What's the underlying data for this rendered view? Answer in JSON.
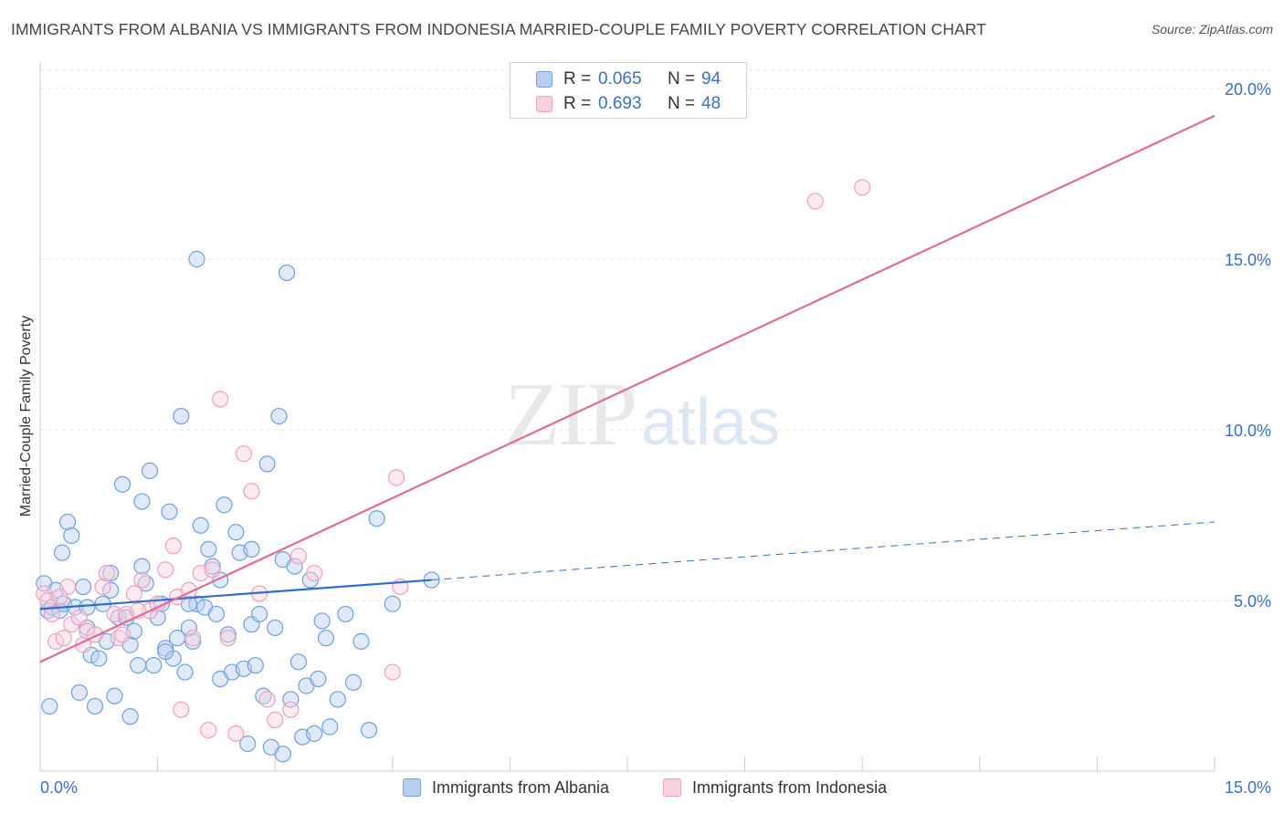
{
  "chart_data": {
    "type": "scatter",
    "title": "IMMIGRANTS FROM ALBANIA VS IMMIGRANTS FROM INDONESIA MARRIED-COUPLE FAMILY POVERTY CORRELATION CHART",
    "source": "Source: ZipAtlas.com",
    "ylabel": "Married-Couple Family Poverty",
    "xlabel": "",
    "xlim": [
      0,
      15
    ],
    "ylim": [
      0,
      20
    ],
    "x_tick_labels": [
      "0.0%",
      "15.0%"
    ],
    "y_ticks": [
      5,
      10,
      15,
      20
    ],
    "y_tick_labels": [
      "5.0%",
      "10.0%",
      "15.0%",
      "20.0%"
    ],
    "grid": true,
    "watermark": {
      "zip": "ZIP",
      "atlas": "atlas"
    },
    "legend_stats": [
      {
        "r_label": "R =",
        "r_value": "0.065",
        "n_label": "N =",
        "n_value": "94"
      },
      {
        "r_label": "R =",
        "r_value": "0.693",
        "n_label": "N =",
        "n_value": "48"
      }
    ],
    "series": [
      {
        "name": "Immigrants from Albania",
        "color": "#6fa0e0",
        "fill": "#b7cef0",
        "line_color": "#2f6fc7",
        "trend": {
          "x0": 0,
          "y0": 4.75,
          "x1": 5,
          "y1": 5.6,
          "dash_x1": 15,
          "dash_y1": 7.3
        },
        "points": [
          [
            0.05,
            5.5
          ],
          [
            0.1,
            4.7
          ],
          [
            0.15,
            4.8
          ],
          [
            0.2,
            5.3
          ],
          [
            0.25,
            4.7
          ],
          [
            0.3,
            4.9
          ],
          [
            0.35,
            7.3
          ],
          [
            0.4,
            6.9
          ],
          [
            0.45,
            4.8
          ],
          [
            0.5,
            2.3
          ],
          [
            0.55,
            5.4
          ],
          [
            0.6,
            4.2
          ],
          [
            0.65,
            3.4
          ],
          [
            0.7,
            1.9
          ],
          [
            0.75,
            3.3
          ],
          [
            0.8,
            4.9
          ],
          [
            0.85,
            3.8
          ],
          [
            0.9,
            5.3
          ],
          [
            0.95,
            2.2
          ],
          [
            1.0,
            4.5
          ],
          [
            1.05,
            8.4
          ],
          [
            1.1,
            4.5
          ],
          [
            1.15,
            3.7
          ],
          [
            1.2,
            4.1
          ],
          [
            1.25,
            3.1
          ],
          [
            1.3,
            6.0
          ],
          [
            1.35,
            5.5
          ],
          [
            1.4,
            8.8
          ],
          [
            1.45,
            3.1
          ],
          [
            1.5,
            4.5
          ],
          [
            1.55,
            4.9
          ],
          [
            1.6,
            3.6
          ],
          [
            1.65,
            7.6
          ],
          [
            1.7,
            3.3
          ],
          [
            1.75,
            3.9
          ],
          [
            1.8,
            10.4
          ],
          [
            1.85,
            2.9
          ],
          [
            1.9,
            4.2
          ],
          [
            1.95,
            3.8
          ],
          [
            2.0,
            4.9
          ],
          [
            2.05,
            7.2
          ],
          [
            2.1,
            4.8
          ],
          [
            2.15,
            6.5
          ],
          [
            2.2,
            6.0
          ],
          [
            2.25,
            4.6
          ],
          [
            2.3,
            2.7
          ],
          [
            2.35,
            7.8
          ],
          [
            2.4,
            4.0
          ],
          [
            2.45,
            2.9
          ],
          [
            2.5,
            7.0
          ],
          [
            2.55,
            6.4
          ],
          [
            2.6,
            3.0
          ],
          [
            2.65,
            0.8
          ],
          [
            2.7,
            4.3
          ],
          [
            2.75,
            3.1
          ],
          [
            2.8,
            4.6
          ],
          [
            2.85,
            2.2
          ],
          [
            2.9,
            9.0
          ],
          [
            2.95,
            0.7
          ],
          [
            3.0,
            4.2
          ],
          [
            3.05,
            10.4
          ],
          [
            3.1,
            6.2
          ],
          [
            3.15,
            14.6
          ],
          [
            3.2,
            2.1
          ],
          [
            3.25,
            6.0
          ],
          [
            3.3,
            3.2
          ],
          [
            3.35,
            1.0
          ],
          [
            3.4,
            2.5
          ],
          [
            3.45,
            5.6
          ],
          [
            3.5,
            1.1
          ],
          [
            3.55,
            2.7
          ],
          [
            3.6,
            4.4
          ],
          [
            3.65,
            3.9
          ],
          [
            3.7,
            1.3
          ],
          [
            3.8,
            2.1
          ],
          [
            3.9,
            4.6
          ],
          [
            4.0,
            2.6
          ],
          [
            4.1,
            3.8
          ],
          [
            4.2,
            1.2
          ],
          [
            4.3,
            7.4
          ],
          [
            4.5,
            4.9
          ],
          [
            0.12,
            1.9
          ],
          [
            0.28,
            6.4
          ],
          [
            0.9,
            5.8
          ],
          [
            1.15,
            1.6
          ],
          [
            1.6,
            3.5
          ],
          [
            2.0,
            15.0
          ],
          [
            2.3,
            5.6
          ],
          [
            3.1,
            0.5
          ],
          [
            2.7,
            6.5
          ],
          [
            5.0,
            5.6
          ],
          [
            1.3,
            7.9
          ],
          [
            0.6,
            4.8
          ],
          [
            1.9,
            4.9
          ]
        ]
      },
      {
        "name": "Immigrants from Indonesia",
        "color": "#f0a0bc",
        "fill": "#f9d0df",
        "line_color": "#e06b96",
        "trend": {
          "x0": 0,
          "y0": 3.2,
          "x1": 15,
          "y1": 19.2
        },
        "points": [
          [
            0.05,
            5.2
          ],
          [
            0.1,
            5.0
          ],
          [
            0.15,
            4.6
          ],
          [
            0.2,
            3.8
          ],
          [
            0.3,
            3.9
          ],
          [
            0.35,
            5.4
          ],
          [
            0.4,
            4.3
          ],
          [
            0.5,
            4.5
          ],
          [
            0.55,
            3.7
          ],
          [
            0.6,
            4.1
          ],
          [
            0.7,
            4.0
          ],
          [
            0.8,
            5.4
          ],
          [
            0.85,
            5.8
          ],
          [
            0.95,
            4.6
          ],
          [
            1.0,
            3.9
          ],
          [
            1.05,
            4.0
          ],
          [
            1.1,
            4.6
          ],
          [
            1.2,
            5.2
          ],
          [
            1.3,
            5.6
          ],
          [
            1.4,
            4.7
          ],
          [
            1.5,
            4.9
          ],
          [
            1.6,
            5.9
          ],
          [
            1.7,
            6.6
          ],
          [
            1.75,
            5.1
          ],
          [
            1.8,
            1.8
          ],
          [
            1.9,
            5.3
          ],
          [
            1.95,
            3.9
          ],
          [
            2.05,
            5.8
          ],
          [
            2.15,
            1.2
          ],
          [
            2.2,
            5.9
          ],
          [
            2.3,
            10.9
          ],
          [
            2.4,
            3.9
          ],
          [
            2.5,
            1.1
          ],
          [
            2.6,
            9.3
          ],
          [
            2.7,
            8.2
          ],
          [
            2.8,
            5.2
          ],
          [
            2.9,
            2.1
          ],
          [
            3.0,
            1.5
          ],
          [
            3.2,
            1.8
          ],
          [
            3.3,
            6.3
          ],
          [
            3.5,
            5.8
          ],
          [
            4.5,
            2.9
          ],
          [
            4.55,
            8.6
          ],
          [
            4.6,
            5.4
          ],
          [
            9.9,
            16.7
          ],
          [
            10.5,
            17.1
          ],
          [
            0.25,
            5.1
          ],
          [
            1.25,
            4.7
          ]
        ]
      }
    ]
  }
}
